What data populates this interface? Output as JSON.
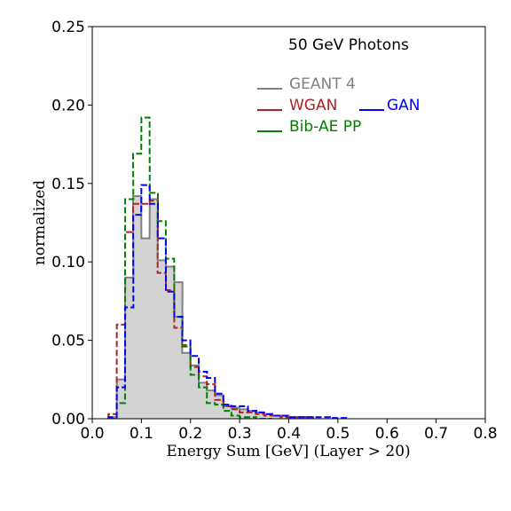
{
  "chart_data": {
    "type": "histogram",
    "title": "50 GeV Photons",
    "xlabel": "Energy Sum [GeV] (Layer > 20)",
    "ylabel": "normalized",
    "xlim": [
      0.0,
      0.8
    ],
    "ylim": [
      0.0,
      0.25
    ],
    "xticks": [
      "0.0",
      "0.1",
      "0.2",
      "0.3",
      "0.4",
      "0.5",
      "0.6",
      "0.7",
      "0.8"
    ],
    "yticks": [
      "0.00",
      "0.05",
      "0.10",
      "0.15",
      "0.20",
      "0.25"
    ],
    "grid": false,
    "legend_placement": "top-right",
    "bin_width": 0.0167,
    "series": [
      {
        "name": "GEANT 4",
        "color": "#808080",
        "fill": "#d3d3d3",
        "style": "solid-filled",
        "bins": [
          [
            0.033,
            0.001
          ],
          [
            0.05,
            0.025
          ],
          [
            0.067,
            0.09
          ],
          [
            0.083,
            0.142
          ],
          [
            0.1,
            0.115
          ],
          [
            0.117,
            0.14
          ],
          [
            0.133,
            0.101
          ],
          [
            0.15,
            0.097
          ],
          [
            0.167,
            0.087
          ],
          [
            0.183,
            0.042
          ],
          [
            0.2,
            0.034
          ],
          [
            0.217,
            0.023
          ],
          [
            0.233,
            0.018
          ],
          [
            0.25,
            0.015
          ],
          [
            0.267,
            0.008
          ],
          [
            0.283,
            0.007
          ],
          [
            0.3,
            0.006
          ],
          [
            0.317,
            0.005
          ],
          [
            0.333,
            0.004
          ],
          [
            0.35,
            0.003
          ],
          [
            0.367,
            0.002
          ],
          [
            0.383,
            0.002
          ],
          [
            0.4,
            0.001
          ],
          [
            0.417,
            0.001
          ],
          [
            0.433,
            0.001
          ]
        ]
      },
      {
        "name": "WGAN",
        "color": "#b22222",
        "style": "dashed",
        "bins": [
          [
            0.033,
            0.003
          ],
          [
            0.05,
            0.06
          ],
          [
            0.067,
            0.119
          ],
          [
            0.083,
            0.137
          ],
          [
            0.1,
            0.137
          ],
          [
            0.117,
            0.139
          ],
          [
            0.133,
            0.093
          ],
          [
            0.15,
            0.082
          ],
          [
            0.167,
            0.058
          ],
          [
            0.183,
            0.047
          ],
          [
            0.2,
            0.033
          ],
          [
            0.217,
            0.027
          ],
          [
            0.233,
            0.022
          ],
          [
            0.25,
            0.012
          ],
          [
            0.267,
            0.008
          ],
          [
            0.283,
            0.006
          ],
          [
            0.3,
            0.004
          ],
          [
            0.317,
            0.004
          ],
          [
            0.333,
            0.003
          ],
          [
            0.35,
            0.002
          ],
          [
            0.367,
            0.002
          ],
          [
            0.383,
            0.001
          ],
          [
            0.4,
            0.001
          ],
          [
            0.417,
            0.001
          ],
          [
            0.433,
            0.001
          ]
        ]
      },
      {
        "name": "Bib-AE PP",
        "color": "#008000",
        "style": "dashed",
        "bins": [
          [
            0.033,
            0.0
          ],
          [
            0.05,
            0.01
          ],
          [
            0.067,
            0.14
          ],
          [
            0.083,
            0.169
          ],
          [
            0.1,
            0.192
          ],
          [
            0.117,
            0.144
          ],
          [
            0.133,
            0.126
          ],
          [
            0.15,
            0.102
          ],
          [
            0.167,
            0.065
          ],
          [
            0.183,
            0.046
          ],
          [
            0.2,
            0.028
          ],
          [
            0.217,
            0.02
          ],
          [
            0.233,
            0.01
          ],
          [
            0.25,
            0.009
          ],
          [
            0.267,
            0.005
          ],
          [
            0.283,
            0.002
          ],
          [
            0.3,
            0.001
          ],
          [
            0.317,
            0.001
          ],
          [
            0.333,
            0.0
          ],
          [
            0.35,
            0.0
          ]
        ]
      },
      {
        "name": "GAN",
        "color": "#0000ff",
        "style": "dashed",
        "bins": [
          [
            0.033,
            0.001
          ],
          [
            0.05,
            0.02
          ],
          [
            0.067,
            0.071
          ],
          [
            0.083,
            0.13
          ],
          [
            0.1,
            0.149
          ],
          [
            0.117,
            0.137
          ],
          [
            0.133,
            0.115
          ],
          [
            0.15,
            0.081
          ],
          [
            0.167,
            0.065
          ],
          [
            0.183,
            0.05
          ],
          [
            0.2,
            0.04
          ],
          [
            0.217,
            0.03
          ],
          [
            0.233,
            0.026
          ],
          [
            0.25,
            0.016
          ],
          [
            0.267,
            0.009
          ],
          [
            0.283,
            0.008
          ],
          [
            0.3,
            0.008
          ],
          [
            0.317,
            0.005
          ],
          [
            0.333,
            0.004
          ],
          [
            0.35,
            0.003
          ],
          [
            0.367,
            0.002
          ],
          [
            0.383,
            0.002
          ],
          [
            0.4,
            0.001
          ],
          [
            0.417,
            0.001
          ],
          [
            0.433,
            0.001
          ],
          [
            0.45,
            0.001
          ],
          [
            0.467,
            0.001
          ],
          [
            0.483,
            0.0005
          ],
          [
            0.5,
            0.0005
          ]
        ]
      }
    ]
  }
}
